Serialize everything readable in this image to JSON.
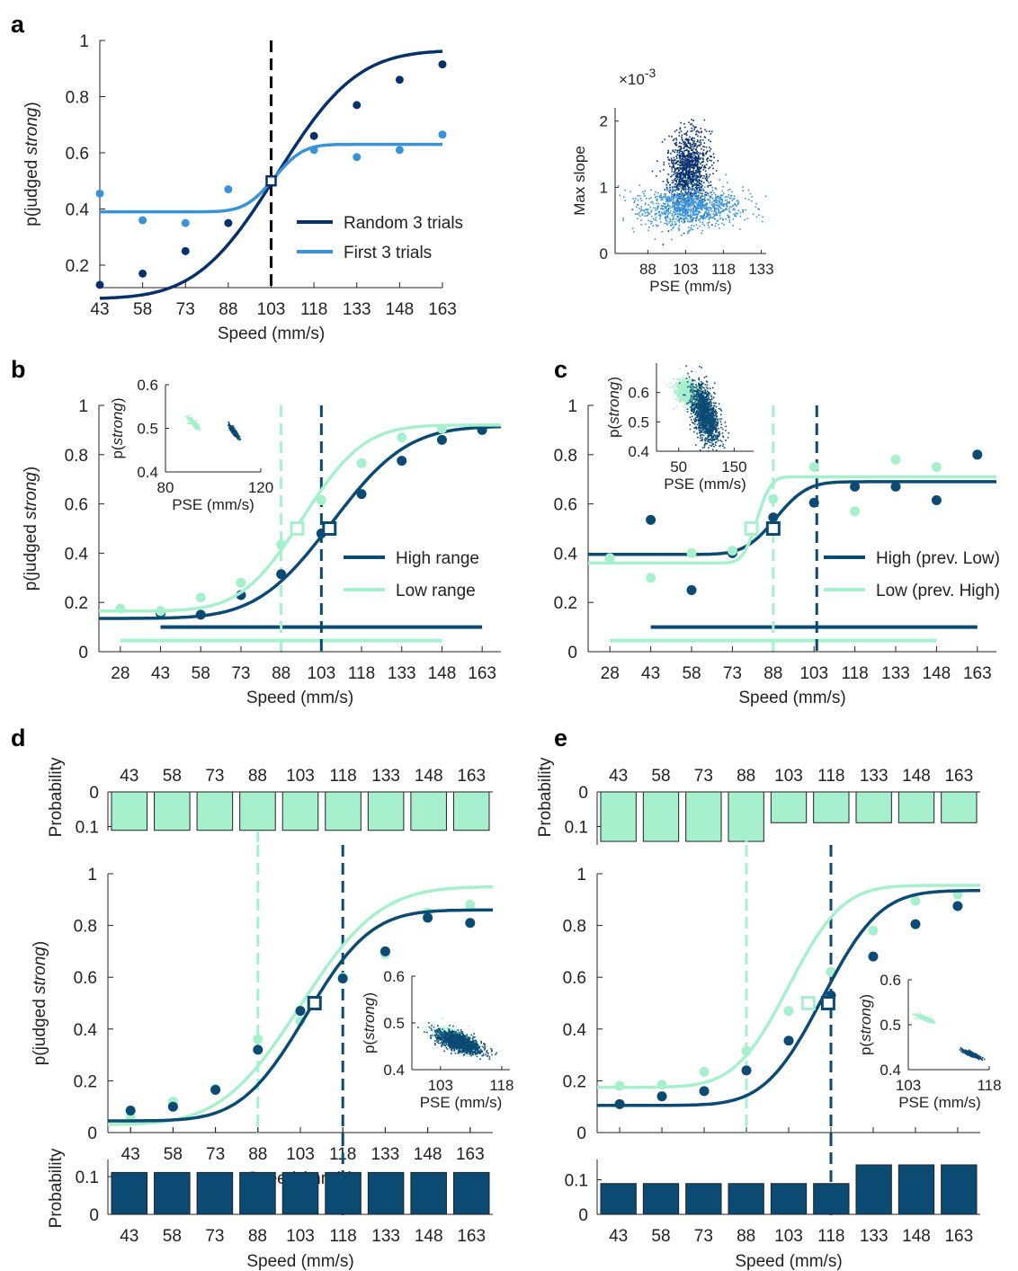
{
  "colors": {
    "dark_blue": "#08306b",
    "mid_blue": "#3a92d8",
    "high": "#0b4a73",
    "low": "#a6f0cd",
    "axis": "#222222"
  },
  "chart_data": [
    {
      "id": "a",
      "panel_label": "a",
      "type": "line",
      "xlabel": "Speed (mm/s)",
      "ylabel_pre": "p(judged ",
      "ylabel_it": "strong",
      "ylabel_post": ")",
      "x_ticks": [
        43,
        58,
        73,
        88,
        103,
        118,
        133,
        148,
        163
      ],
      "y_ticks": [
        0.2,
        0.4,
        0.6,
        0.8,
        1
      ],
      "y_tick_labels": [
        "0.2",
        "0.4",
        "0.6",
        "0.8",
        "1"
      ],
      "xlim": [
        43,
        163
      ],
      "ylim": [
        0.12,
        1.0
      ],
      "pse_marker": {
        "x": 103,
        "y": 0.5
      },
      "series": [
        {
          "name": "Random 3 trials",
          "color": "#08306b",
          "x": [
            43,
            58,
            73,
            88,
            103,
            118,
            133,
            148,
            163
          ],
          "y": [
            0.13,
            0.17,
            0.25,
            0.35,
            0.5,
            0.66,
            0.77,
            0.86,
            0.915
          ],
          "fit": {
            "lower": 0.08,
            "upper": 0.965,
            "mu": 105,
            "sigma": 22
          }
        },
        {
          "name": "First 3 trials",
          "color": "#3a92d8",
          "x": [
            43,
            58,
            73,
            88,
            103,
            118,
            133,
            148,
            163
          ],
          "y": [
            0.455,
            0.36,
            0.35,
            0.47,
            0.5,
            0.61,
            0.585,
            0.61,
            0.665
          ],
          "fit": {
            "lower": 0.39,
            "upper": 0.63,
            "mu": 104,
            "sigma": 8
          }
        }
      ],
      "vlines": [
        {
          "x": 103,
          "color": "#000000"
        }
      ]
    },
    {
      "id": "a_inset",
      "type": "scatter",
      "xlabel": "PSE (mm/s)",
      "ylabel": "Max slope",
      "exponent_label": "×10",
      "exponent_power": "-3",
      "x_ticks": [
        88,
        103,
        118,
        133
      ],
      "y_ticks": [
        0,
        1,
        2
      ],
      "xlim": [
        75,
        135
      ],
      "ylim": [
        0,
        2.2
      ],
      "clouds": [
        {
          "color": "#08306b",
          "cx": 104,
          "cy": 1.28,
          "sx": 4,
          "sy": 0.28,
          "rho": 0
        },
        {
          "color": "#3a92d8",
          "cx": 105,
          "cy": 0.72,
          "sx": 10,
          "sy": 0.15,
          "rho": 0
        }
      ]
    },
    {
      "id": "b",
      "panel_label": "b",
      "type": "line",
      "xlabel": "Speed (mm/s)",
      "ylabel_pre": "p(judged ",
      "ylabel_it": "strong",
      "ylabel_post": ")",
      "x_ticks": [
        28,
        43,
        58,
        73,
        88,
        103,
        118,
        133,
        148,
        163
      ],
      "y_ticks": [
        0,
        0.2,
        0.4,
        0.6,
        0.8,
        1
      ],
      "y_tick_labels": [
        "0",
        "0.2",
        "0.4",
        "0.6",
        "0.8",
        "1"
      ],
      "xlim": [
        20,
        170
      ],
      "ylim": [
        0,
        1.0
      ],
      "series": [
        {
          "name": "High range",
          "color": "#0b4a73",
          "x": [
            43,
            58,
            73,
            88,
            103,
            118,
            133,
            148,
            163
          ],
          "y": [
            0.155,
            0.15,
            0.23,
            0.315,
            0.48,
            0.64,
            0.775,
            0.86,
            0.9
          ],
          "fit": {
            "lower": 0.135,
            "upper": 0.915,
            "mu": 107,
            "sigma": 22
          },
          "pse": {
            "x": 106,
            "y": 0.5
          }
        },
        {
          "name": "Low range",
          "color": "#a6f0cd",
          "x": [
            28,
            43,
            58,
            73,
            88,
            103,
            118,
            133,
            148
          ],
          "y": [
            0.175,
            0.165,
            0.22,
            0.28,
            0.435,
            0.615,
            0.765,
            0.87,
            0.905
          ],
          "fit": {
            "lower": 0.165,
            "upper": 0.92,
            "mu": 96,
            "sigma": 18
          },
          "pse": {
            "x": 94,
            "y": 0.5
          }
        }
      ],
      "vlines": [
        {
          "x": 103,
          "color": "#0b4a73"
        },
        {
          "x": 88,
          "color": "#a6f0cd"
        }
      ],
      "range_bars": [
        {
          "x0": 43,
          "x1": 163,
          "y": 0.1,
          "color": "#0b4a73"
        },
        {
          "x0": 28,
          "x1": 148,
          "y": 0.045,
          "color": "#a6f0cd"
        }
      ]
    },
    {
      "id": "b_inset",
      "type": "scatter",
      "xlabel": "PSE (mm/s)",
      "ylabel_pre": "p(",
      "ylabel_it": "strong",
      "ylabel_post": ")",
      "x_ticks": [
        80,
        120
      ],
      "y_ticks": [
        0.4,
        0.5,
        0.6
      ],
      "xlim": [
        80,
        120
      ],
      "ylim": [
        0.4,
        0.6
      ],
      "clouds": [
        {
          "color": "#a6f0cd",
          "cx": 91.5,
          "cy": 0.513,
          "sx": 1.0,
          "sy": 0.006,
          "rho": -0.85
        },
        {
          "color": "#0b4a73",
          "cx": 108.5,
          "cy": 0.494,
          "sx": 0.8,
          "sy": 0.006,
          "rho": -0.85
        }
      ]
    },
    {
      "id": "c",
      "panel_label": "c",
      "type": "line",
      "xlabel": "Speed (mm/s)",
      "x_ticks": [
        28,
        43,
        58,
        73,
        88,
        103,
        118,
        133,
        148,
        163
      ],
      "y_ticks": [
        0,
        0.2,
        0.4,
        0.6,
        0.8,
        1
      ],
      "y_tick_labels": [
        "0",
        "0.2",
        "0.4",
        "0.6",
        "0.8",
        "1"
      ],
      "xlim": [
        20,
        170
      ],
      "ylim": [
        0,
        1.0
      ],
      "series": [
        {
          "name": "High (prev. Low)",
          "color": "#0b4a73",
          "x": [
            43,
            58,
            73,
            88,
            103,
            118,
            133,
            148,
            163
          ],
          "y": [
            0.535,
            0.25,
            0.4,
            0.545,
            0.605,
            0.67,
            0.67,
            0.615,
            0.8
          ],
          "fit": {
            "lower": 0.395,
            "upper": 0.69,
            "mu": 89,
            "sigma": 9
          },
          "pse": {
            "x": 88,
            "y": 0.5
          }
        },
        {
          "name": "Low (prev. High)",
          "color": "#a6f0cd",
          "x": [
            28,
            43,
            58,
            73,
            88,
            103,
            118,
            133,
            148
          ],
          "y": [
            0.38,
            0.3,
            0.4,
            0.41,
            0.62,
            0.75,
            0.57,
            0.78,
            0.75
          ],
          "fit": {
            "lower": 0.36,
            "upper": 0.71,
            "mu": 82,
            "sigma": 4
          },
          "pse": {
            "x": 80,
            "y": 0.5
          }
        }
      ],
      "vlines": [
        {
          "x": 104,
          "color": "#0b4a73"
        },
        {
          "x": 88,
          "color": "#a6f0cd"
        }
      ],
      "range_bars": [
        {
          "x0": 43,
          "x1": 163,
          "y": 0.1,
          "color": "#0b4a73"
        },
        {
          "x0": 28,
          "x1": 148,
          "y": 0.045,
          "color": "#a6f0cd"
        }
      ]
    },
    {
      "id": "c_inset",
      "type": "scatter",
      "xlabel": "PSE (mm/s)",
      "ylabel_pre": "p(",
      "ylabel_it": "strong",
      "ylabel_post": ")",
      "x_ticks": [
        50,
        150
      ],
      "y_ticks": [
        0.4,
        0.5,
        0.6
      ],
      "xlim": [
        10,
        185
      ],
      "ylim": [
        0.4,
        0.7
      ],
      "clouds": [
        {
          "color": "#a6f0cd",
          "cx": 65,
          "cy": 0.6,
          "sx": 10,
          "sy": 0.02,
          "rho": -0.4
        },
        {
          "color": "#0b4a73",
          "cx": 97,
          "cy": 0.53,
          "sx": 12,
          "sy": 0.05,
          "rho": -0.5
        }
      ]
    },
    {
      "id": "d",
      "panel_label": "d",
      "type": "line",
      "xlabel": "Speed (mm/s)",
      "ylabel_pre": "p(judged ",
      "ylabel_it": "strong",
      "ylabel_post": ")",
      "x_ticks": [
        43,
        58,
        73,
        88,
        103,
        118,
        133,
        148,
        163
      ],
      "y_ticks": [
        0,
        0.2,
        0.4,
        0.6,
        0.8,
        1
      ],
      "y_tick_labels": [
        "0",
        "0.2",
        "0.4",
        "0.6",
        "0.8",
        "1"
      ],
      "xlim": [
        35,
        171
      ],
      "ylim": [
        0,
        1.0
      ],
      "series": [
        {
          "name": "",
          "color": "#a6f0cd",
          "x": [
            43,
            58,
            73,
            88,
            103,
            118,
            133,
            148,
            163
          ],
          "y": [
            0.06,
            0.12,
            0.17,
            0.36,
            0.43,
            0.6,
            0.69,
            0.85,
            0.88
          ],
          "fit": {
            "lower": 0.03,
            "upper": 0.95,
            "mu": 103,
            "sigma": 22
          },
          "pse": {
            "x": 108,
            "y": 0.5
          }
        },
        {
          "name": "",
          "color": "#0b4a73",
          "x": [
            43,
            58,
            73,
            88,
            103,
            118,
            133,
            148,
            163
          ],
          "y": [
            0.085,
            0.1,
            0.165,
            0.32,
            0.47,
            0.595,
            0.7,
            0.83,
            0.81
          ],
          "fit": {
            "lower": 0.045,
            "upper": 0.86,
            "mu": 105,
            "sigma": 18
          },
          "pse": {
            "x": 108,
            "y": 0.5
          }
        }
      ],
      "vlines": [
        {
          "x": 118,
          "color": "#0b4a73"
        },
        {
          "x": 88,
          "color": "#a6f0cd"
        }
      ]
    },
    {
      "id": "d_inset",
      "type": "scatter",
      "xlabel": "PSE (mm/s)",
      "ylabel_pre": "p(",
      "ylabel_it": "strong",
      "ylabel_post": ")",
      "x_ticks": [
        103,
        118
      ],
      "y_ticks": [
        0.4,
        0.5,
        0.6
      ],
      "xlim": [
        96,
        120
      ],
      "ylim": [
        0.4,
        0.6
      ],
      "clouds": [
        {
          "color": "#a6f0cd",
          "cx": 106.5,
          "cy": 0.464,
          "sx": 2.2,
          "sy": 0.012,
          "rho": -0.65
        },
        {
          "color": "#0b4a73",
          "cx": 107.5,
          "cy": 0.46,
          "sx": 2.6,
          "sy": 0.012,
          "rho": -0.65
        }
      ]
    },
    {
      "id": "d_top",
      "type": "bar",
      "ylabel": "Probability",
      "categories": [
        "43",
        "58",
        "73",
        "88",
        "103",
        "118",
        "133",
        "148",
        "163"
      ],
      "values": [
        0.111,
        0.111,
        0.111,
        0.111,
        0.111,
        0.111,
        0.111,
        0.111,
        0.111
      ],
      "y_tick_labels": [
        "0",
        "0.1"
      ],
      "color": "#a6f0cd",
      "inverted": true
    },
    {
      "id": "d_bottom",
      "type": "bar",
      "ylabel": "Probability",
      "categories": [
        "43",
        "58",
        "73",
        "88",
        "103",
        "118",
        "133",
        "148",
        "163"
      ],
      "values": [
        0.111,
        0.111,
        0.111,
        0.111,
        0.111,
        0.111,
        0.111,
        0.111,
        0.111
      ],
      "y_tick_labels": [
        "0",
        "0.1"
      ],
      "color": "#0b4a73",
      "xlabel": "Speed (mm/s)"
    },
    {
      "id": "e",
      "panel_label": "e",
      "type": "line",
      "y_ticks": [
        0,
        0.2,
        0.4,
        0.6,
        0.8,
        1
      ],
      "y_tick_labels": [
        "0",
        "0.2",
        "0.4",
        "0.6",
        "0.8",
        "1"
      ],
      "xlim": [
        35,
        171
      ],
      "ylim": [
        0,
        1.0
      ],
      "series": [
        {
          "name": "",
          "color": "#a6f0cd",
          "x": [
            43,
            58,
            73,
            88,
            103,
            118,
            133,
            148,
            163
          ],
          "y": [
            0.18,
            0.185,
            0.235,
            0.315,
            0.47,
            0.62,
            0.78,
            0.895,
            0.92
          ],
          "fit": {
            "lower": 0.175,
            "upper": 0.955,
            "mu": 103,
            "sigma": 15
          },
          "pse": {
            "x": 110,
            "y": 0.5
          }
        },
        {
          "name": "",
          "color": "#0b4a73",
          "x": [
            43,
            58,
            73,
            88,
            103,
            118,
            133,
            148,
            163
          ],
          "y": [
            0.11,
            0.14,
            0.16,
            0.24,
            0.355,
            0.53,
            0.68,
            0.805,
            0.875
          ],
          "fit": {
            "lower": 0.105,
            "upper": 0.935,
            "mu": 115,
            "sigma": 16
          },
          "pse": {
            "x": 117,
            "y": 0.5
          }
        }
      ],
      "vlines": [
        {
          "x": 118,
          "color": "#0b4a73"
        },
        {
          "x": 88,
          "color": "#a6f0cd"
        }
      ]
    },
    {
      "id": "e_inset",
      "type": "scatter",
      "xlabel": "PSE (mm/s)",
      "ylabel_pre": "p(",
      "ylabel_it": "strong",
      "ylabel_post": ")",
      "x_ticks": [
        103,
        118
      ],
      "y_ticks": [
        0.4,
        0.5,
        0.6
      ],
      "xlim": [
        103,
        118
      ],
      "ylim": [
        0.4,
        0.6
      ],
      "clouds": [
        {
          "color": "#a6f0cd",
          "cx": 106,
          "cy": 0.515,
          "sx": 0.7,
          "sy": 0.004,
          "rho": -0.85
        },
        {
          "color": "#0b4a73",
          "cx": 114.6,
          "cy": 0.436,
          "sx": 0.7,
          "sy": 0.004,
          "rho": -0.85
        }
      ]
    },
    {
      "id": "e_top",
      "type": "bar",
      "ylabel": "Probability",
      "categories": [
        "43",
        "58",
        "73",
        "88",
        "103",
        "118",
        "133",
        "148",
        "163"
      ],
      "values": [
        0.143,
        0.143,
        0.143,
        0.143,
        0.089,
        0.089,
        0.089,
        0.089,
        0.089
      ],
      "y_tick_labels": [
        "0",
        "0.1"
      ],
      "color": "#a6f0cd",
      "inverted": true
    },
    {
      "id": "e_bottom",
      "type": "bar",
      "ylabel": "",
      "categories": [
        "43",
        "58",
        "73",
        "88",
        "103",
        "118",
        "133",
        "148",
        "163"
      ],
      "values": [
        0.089,
        0.089,
        0.089,
        0.089,
        0.089,
        0.089,
        0.143,
        0.143,
        0.143
      ],
      "y_tick_labels": [
        "0",
        "0.1"
      ],
      "color": "#0b4a73",
      "xlabel": "Speed (mm/s)"
    }
  ]
}
